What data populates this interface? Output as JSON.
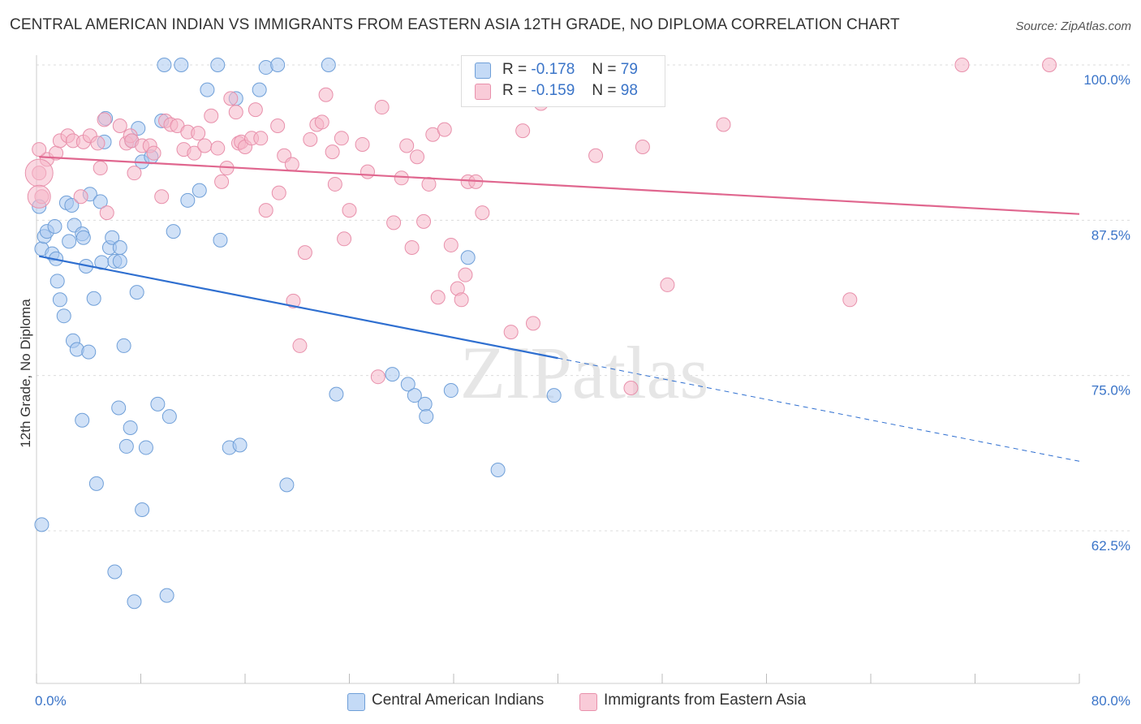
{
  "title": "CENTRAL AMERICAN INDIAN VS IMMIGRANTS FROM EASTERN ASIA 12TH GRADE, NO DIPLOMA CORRELATION CHART",
  "source": "Source: ZipAtlas.com",
  "watermark": "ZIPatlas",
  "legend": {
    "rows": [
      {
        "r_label": "R =",
        "r_value": "-0.178",
        "n_label": "N =",
        "n_value": "79",
        "color": "#a9c8f0"
      },
      {
        "r_label": "R =",
        "r_value": "-0.159",
        "n_label": "N =",
        "n_value": "98",
        "color": "#f5b6c8"
      }
    ]
  },
  "bottom_legend": [
    {
      "label": "Central American Indians",
      "color": "#a9c8f0"
    },
    {
      "label": "Immigrants from Eastern Asia",
      "color": "#f5b6c8"
    }
  ],
  "chart_data": {
    "type": "scatter",
    "ylabel": "12th Grade, No Diploma",
    "xlim": [
      0,
      80
    ],
    "ylim": [
      50,
      101.3
    ],
    "x_tick_labels": [
      "0.0%",
      "80.0%"
    ],
    "y_ticks": [
      100.0,
      87.5,
      75.0,
      62.5
    ],
    "y_tick_labels": [
      "100.0%",
      "87.5%",
      "75.0%",
      "62.5%"
    ],
    "grid": true,
    "legend_position": "top-center",
    "series": [
      {
        "name": "Central American Indians",
        "color": "#3a74c8",
        "fill": "#a9c8f0",
        "trend": {
          "x0": 0.2,
          "y0": 84.6,
          "x1": 40.0,
          "y1": 76.4,
          "dash_x1": 80.0,
          "dash_y1": 68.1
        },
        "points": [
          [
            0.2,
            88.6
          ],
          [
            0.4,
            85.2
          ],
          [
            0.6,
            86.2
          ],
          [
            0.8,
            86.6
          ],
          [
            1.2,
            84.8
          ],
          [
            1.4,
            87.0
          ],
          [
            1.5,
            84.4
          ],
          [
            1.6,
            82.6
          ],
          [
            1.8,
            81.1
          ],
          [
            2.1,
            79.8
          ],
          [
            2.3,
            88.9
          ],
          [
            2.5,
            85.8
          ],
          [
            2.7,
            88.7
          ],
          [
            2.8,
            77.8
          ],
          [
            2.9,
            87.1
          ],
          [
            3.1,
            77.1
          ],
          [
            3.5,
            86.4
          ],
          [
            3.6,
            86.1
          ],
          [
            3.5,
            71.4
          ],
          [
            3.8,
            83.8
          ],
          [
            4.0,
            76.9
          ],
          [
            4.1,
            89.6
          ],
          [
            4.4,
            81.2
          ],
          [
            4.6,
            66.3
          ],
          [
            4.9,
            89.0
          ],
          [
            5.0,
            84.1
          ],
          [
            5.2,
            93.8
          ],
          [
            5.3,
            95.7
          ],
          [
            5.6,
            85.3
          ],
          [
            5.8,
            86.1
          ],
          [
            6.0,
            84.2
          ],
          [
            6.3,
            72.4
          ],
          [
            6.4,
            85.3
          ],
          [
            6.4,
            84.2
          ],
          [
            6.7,
            77.4
          ],
          [
            6.9,
            69.3
          ],
          [
            7.2,
            70.8
          ],
          [
            7.3,
            93.9
          ],
          [
            7.5,
            56.8
          ],
          [
            7.7,
            81.7
          ],
          [
            7.8,
            94.9
          ],
          [
            8.1,
            92.2
          ],
          [
            8.1,
            64.2
          ],
          [
            8.4,
            69.2
          ],
          [
            8.8,
            92.6
          ],
          [
            9.3,
            72.7
          ],
          [
            9.6,
            95.5
          ],
          [
            9.8,
            100.0
          ],
          [
            10.0,
            57.3
          ],
          [
            10.2,
            71.7
          ],
          [
            10.5,
            86.6
          ],
          [
            11.1,
            100.0
          ],
          [
            11.6,
            89.1
          ],
          [
            12.5,
            89.9
          ],
          [
            13.1,
            98.0
          ],
          [
            13.9,
            100.0
          ],
          [
            14.1,
            85.9
          ],
          [
            14.8,
            69.2
          ],
          [
            15.3,
            97.3
          ],
          [
            15.6,
            69.4
          ],
          [
            17.1,
            98.0
          ],
          [
            17.6,
            99.8
          ],
          [
            18.5,
            100.0
          ],
          [
            19.2,
            66.2
          ],
          [
            22.4,
            100.0
          ],
          [
            23.0,
            73.5
          ],
          [
            27.3,
            75.1
          ],
          [
            28.5,
            74.3
          ],
          [
            29.0,
            73.4
          ],
          [
            29.8,
            72.7
          ],
          [
            29.9,
            71.7
          ],
          [
            31.8,
            73.8
          ],
          [
            33.1,
            84.5
          ],
          [
            35.4,
            67.4
          ],
          [
            39.7,
            73.4
          ],
          [
            6.0,
            59.2
          ],
          [
            0.4,
            63.0
          ]
        ]
      },
      {
        "name": "Immigrants from Eastern Asia",
        "color": "#e36d95",
        "fill": "#f5b6c8",
        "trend": {
          "x0": 0.2,
          "y0": 92.6,
          "x1": 80.0,
          "y1": 88.0
        },
        "points": [
          [
            0.2,
            91.3
          ],
          [
            0.4,
            89.4
          ],
          [
            0.8,
            92.4
          ],
          [
            1.5,
            92.9
          ],
          [
            1.8,
            93.9
          ],
          [
            2.4,
            94.3
          ],
          [
            2.8,
            93.9
          ],
          [
            3.4,
            89.4
          ],
          [
            3.6,
            93.8
          ],
          [
            4.1,
            94.3
          ],
          [
            4.7,
            93.7
          ],
          [
            4.9,
            91.7
          ],
          [
            5.2,
            95.6
          ],
          [
            5.4,
            88.1
          ],
          [
            6.4,
            95.1
          ],
          [
            6.9,
            93.7
          ],
          [
            7.2,
            94.3
          ],
          [
            7.3,
            93.9
          ],
          [
            7.5,
            91.3
          ],
          [
            8.1,
            93.5
          ],
          [
            8.7,
            93.5
          ],
          [
            9.0,
            92.9
          ],
          [
            9.6,
            89.4
          ],
          [
            9.9,
            95.5
          ],
          [
            10.3,
            95.2
          ],
          [
            10.8,
            95.1
          ],
          [
            11.3,
            93.2
          ],
          [
            11.6,
            94.6
          ],
          [
            12.1,
            92.9
          ],
          [
            12.4,
            94.5
          ],
          [
            12.9,
            93.5
          ],
          [
            13.4,
            95.9
          ],
          [
            13.9,
            93.3
          ],
          [
            14.2,
            90.6
          ],
          [
            14.6,
            91.7
          ],
          [
            14.9,
            97.3
          ],
          [
            15.3,
            96.2
          ],
          [
            15.5,
            93.7
          ],
          [
            15.7,
            93.8
          ],
          [
            16.0,
            93.4
          ],
          [
            16.5,
            94.1
          ],
          [
            16.8,
            96.4
          ],
          [
            17.2,
            94.1
          ],
          [
            17.6,
            88.3
          ],
          [
            18.5,
            95.1
          ],
          [
            18.6,
            89.7
          ],
          [
            19.0,
            92.7
          ],
          [
            19.6,
            92.0
          ],
          [
            19.7,
            81.0
          ],
          [
            20.2,
            77.4
          ],
          [
            20.6,
            84.9
          ],
          [
            21.0,
            94.0
          ],
          [
            21.5,
            95.2
          ],
          [
            21.9,
            95.4
          ],
          [
            22.2,
            97.6
          ],
          [
            22.7,
            93.0
          ],
          [
            22.9,
            90.4
          ],
          [
            23.4,
            94.1
          ],
          [
            23.6,
            86.0
          ],
          [
            24.0,
            88.3
          ],
          [
            25.0,
            93.6
          ],
          [
            25.4,
            91.4
          ],
          [
            26.2,
            74.9
          ],
          [
            26.5,
            96.6
          ],
          [
            27.4,
            87.3
          ],
          [
            28.0,
            90.9
          ],
          [
            28.4,
            93.5
          ],
          [
            28.8,
            85.3
          ],
          [
            29.2,
            92.6
          ],
          [
            29.7,
            87.4
          ],
          [
            30.1,
            90.4
          ],
          [
            30.4,
            94.4
          ],
          [
            30.8,
            81.3
          ],
          [
            31.3,
            94.8
          ],
          [
            31.8,
            85.5
          ],
          [
            32.3,
            82.0
          ],
          [
            32.6,
            81.1
          ],
          [
            32.9,
            83.1
          ],
          [
            33.1,
            90.6
          ],
          [
            33.7,
            90.6
          ],
          [
            34.2,
            88.1
          ],
          [
            36.4,
            78.5
          ],
          [
            37.3,
            94.7
          ],
          [
            37.6,
            100.0
          ],
          [
            38.1,
            79.2
          ],
          [
            38.7,
            96.9
          ],
          [
            42.9,
            92.7
          ],
          [
            43.1,
            100.0
          ],
          [
            45.6,
            74.0
          ],
          [
            46.5,
            93.4
          ],
          [
            48.4,
            82.3
          ],
          [
            52.7,
            95.2
          ],
          [
            62.4,
            81.1
          ],
          [
            71.0,
            100.0
          ],
          [
            77.7,
            100.0
          ],
          [
            0.2,
            93.2
          ]
        ]
      }
    ]
  }
}
